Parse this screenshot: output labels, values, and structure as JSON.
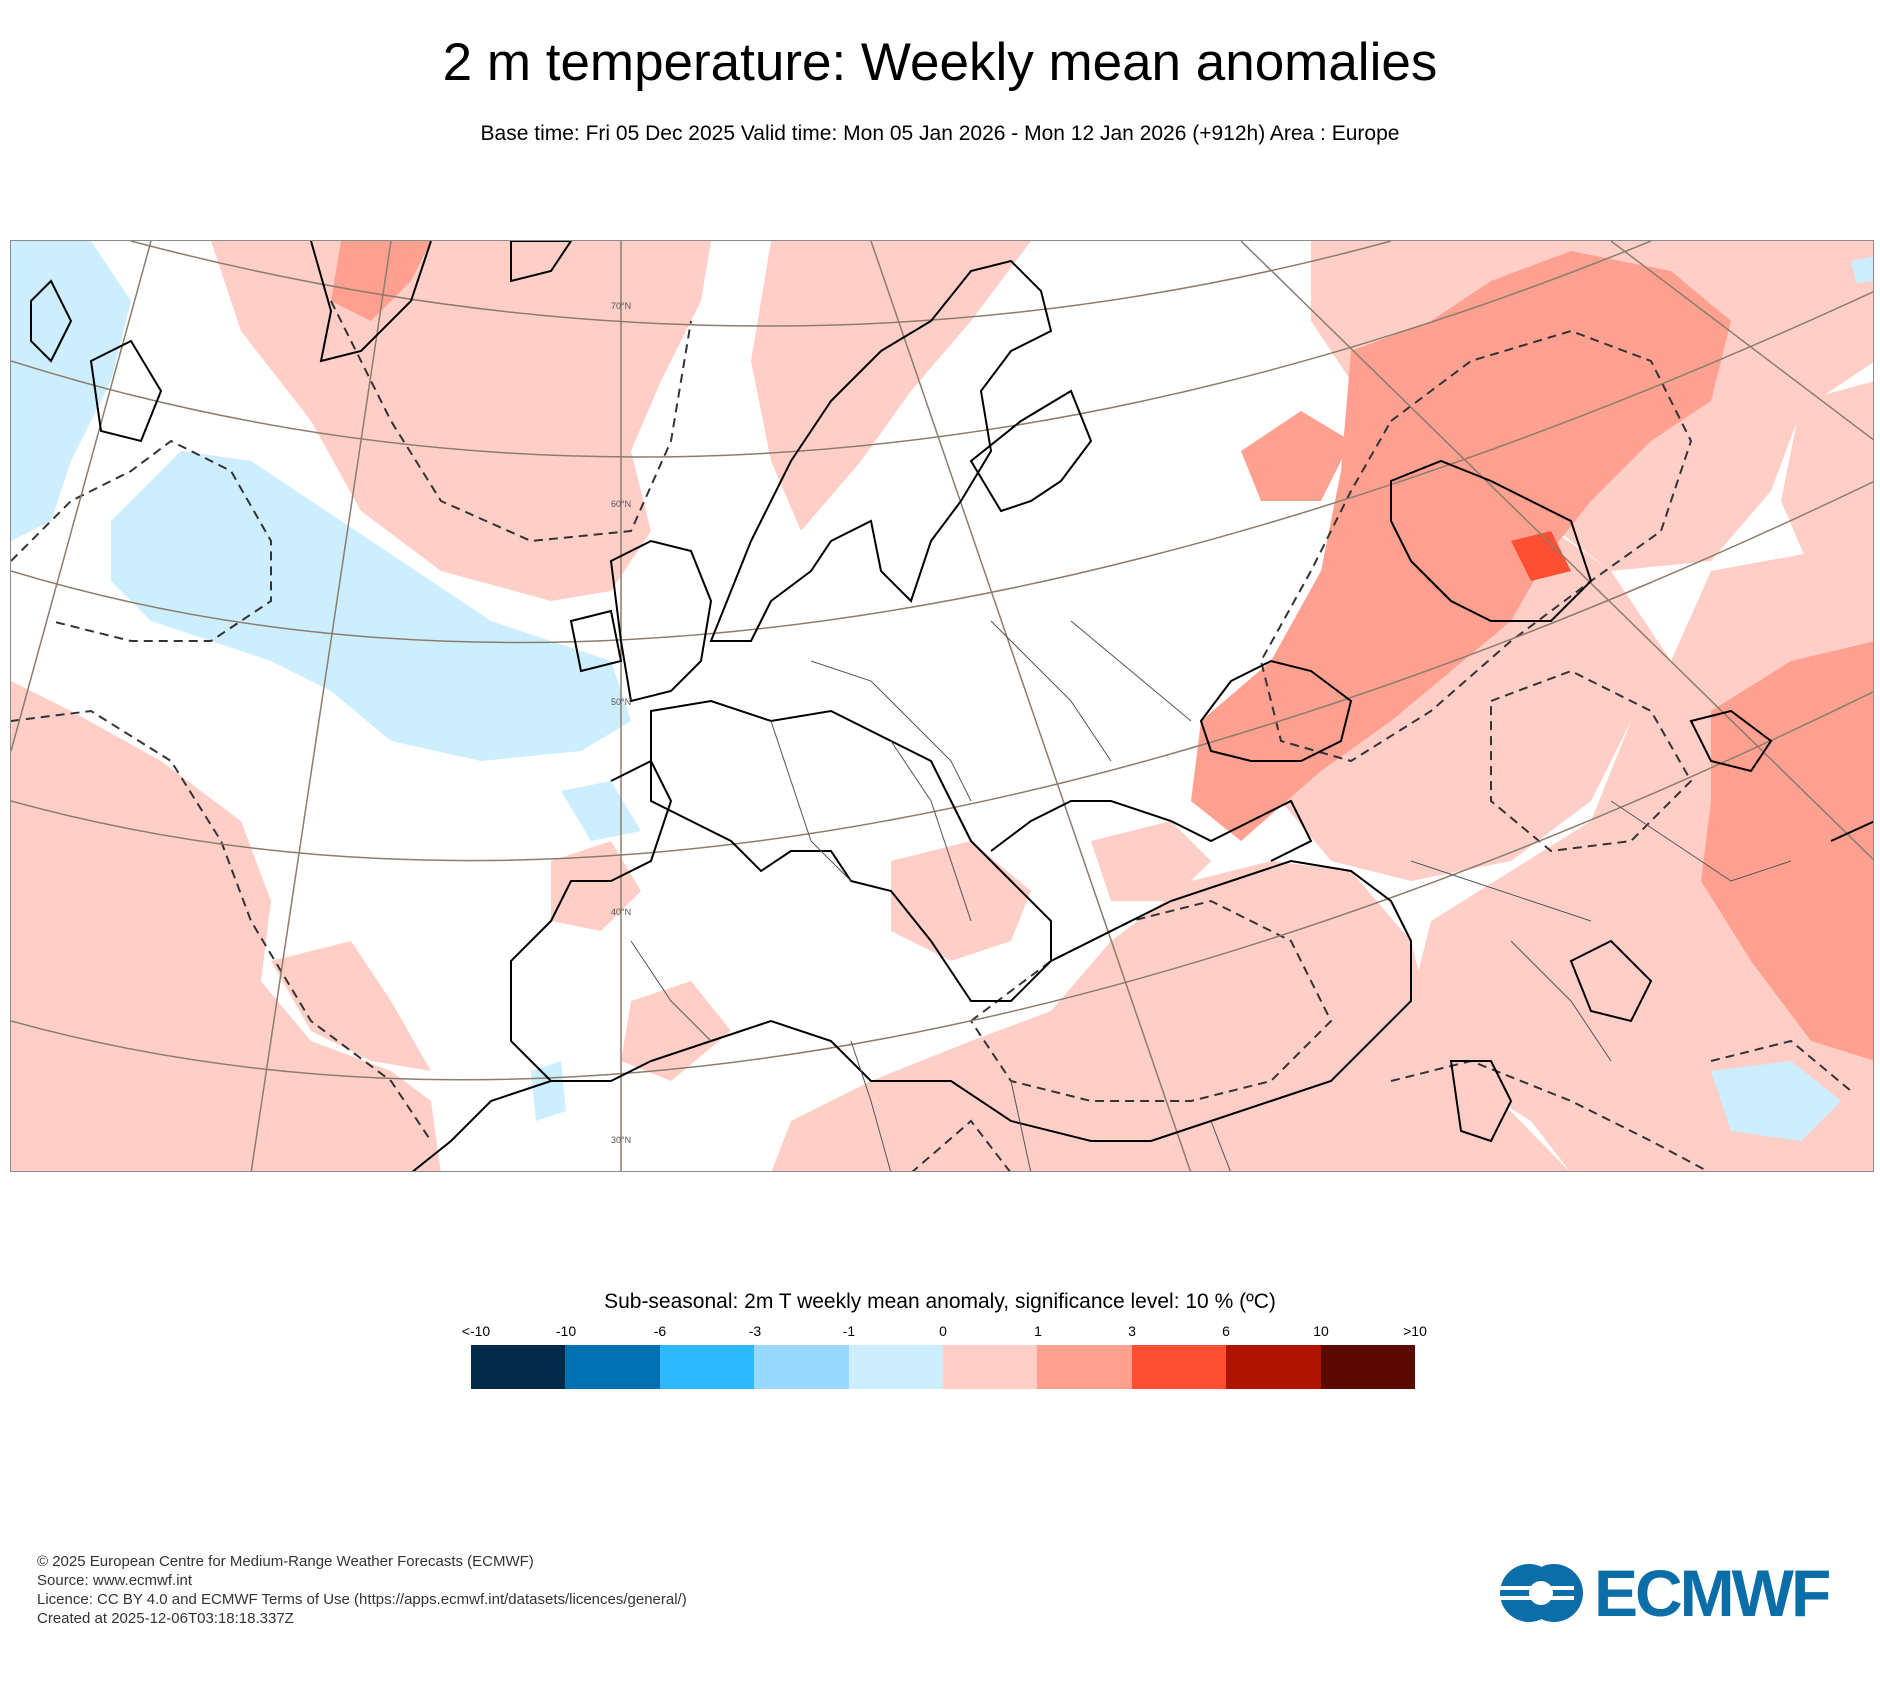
{
  "title": "2 m temperature: Weekly mean anomalies",
  "subtitle": "Base time: Fri 05 Dec 2025 Valid time: Mon 05 Jan 2026 - Mon 12 Jan 2026 (+912h) Area : Europe",
  "map": {
    "area": "Europe",
    "latitude_labels": [
      "70°N",
      "60°N",
      "50°N",
      "40°N",
      "30°N"
    ],
    "colors": {
      "land_outline": "#000000",
      "graticule": "#8b7d6b",
      "significance_contour": "#333333"
    }
  },
  "legend": {
    "title": "Sub-seasonal: 2m T weekly mean anomaly, significance level: 10 % (ºC)",
    "ticks": [
      "<-10",
      "-10",
      "-6",
      "-3",
      "-1",
      "0",
      "1",
      "3",
      "6",
      "10",
      ">10"
    ],
    "colors": [
      "#002a47",
      "#0070b0",
      "#2eb8ff",
      "#99d9ff",
      "#cceeff",
      "#ffcfc7",
      "#ffa090",
      "#ff4f33",
      "#b01400",
      "#5c0a00"
    ]
  },
  "footer": {
    "lines": [
      "© 2025 European Centre for Medium-Range Weather Forecasts (ECMWF)",
      "Source: www.ecmwf.int",
      "Licence: CC BY 4.0 and ECMWF Terms of Use (https://apps.ecmwf.int/datasets/licences/general/)",
      "Created at 2025-12-06T03:18:18.337Z"
    ]
  },
  "logo": {
    "text": "ECMWF",
    "color": "#0b6ea8"
  }
}
